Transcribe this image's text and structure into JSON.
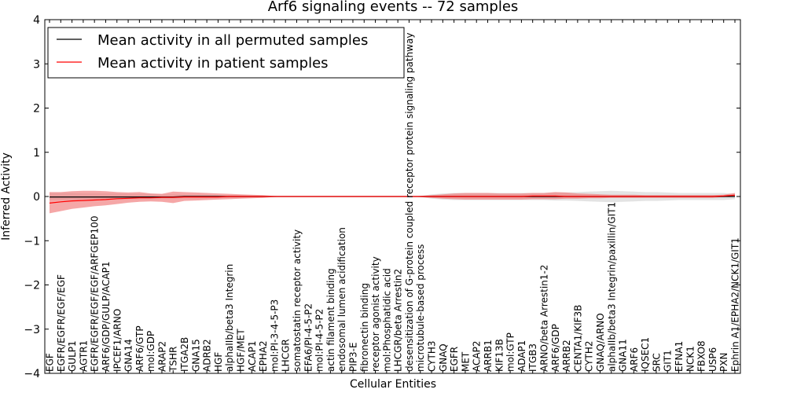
{
  "chart_data": {
    "type": "line",
    "title": "Arf6 signaling events -- 72 samples",
    "xlabel": "Cellular Entities",
    "ylabel": "Inferred Activity",
    "ylim": [
      -4,
      4
    ],
    "yticks": [
      "4",
      "3",
      "2",
      "1",
      "0",
      "−1",
      "−2",
      "−3",
      "−4"
    ],
    "ytick_values": [
      4,
      3,
      2,
      1,
      0,
      -1,
      -2,
      -3,
      -4
    ],
    "legend_position": "top-left",
    "categories": [
      "EGF",
      "EGFR/EGFR/EGF/EGF",
      "GULP1",
      "AGTR1",
      "EGFR/EGFR/EGF/EGF/ARFGEP100",
      "ARF6/GDP/GULP/ACAP1",
      "IPCEF1/ARNO",
      "GNA14",
      "ARF6/GTP",
      "mol:GDP",
      "ARAP2",
      "TSHR",
      "ITGA2B",
      "GNA15",
      "ADRB2",
      "HGF",
      "alphaIIb/beta3 Integrin",
      "HGF/MET",
      "ACAP1",
      "EPHA2",
      "mol:PI-3-4-5-P3",
      "LHCGR",
      "somatostatin receptor activity",
      "EFA6/PI-4-5-P2",
      "mol:PI-4-5-P2",
      "actin filament binding",
      "endosomal lumen acidification",
      "PIP3-E",
      "fibronectin binding",
      "receptor agonist activity",
      "mol:Phosphatidic acid",
      "LHCGR/beta Arrestin2",
      "desensitization of G-protein coupled receptor protein signaling pathway",
      "microtubule-based process",
      "CYTH3",
      "GNAQ",
      "EGFR",
      "MET",
      "ACAP2",
      "ARRB1",
      "KIF13B",
      "mol:GTP",
      "ADAP1",
      "ITGB3",
      "ARNO/beta Arrestin1-2",
      "ARF6/GDP",
      "ARRB2",
      "CENTA1/KIF3B",
      "CYTH2",
      "GNAQ/ARNO",
      "alphaIIb/beta3 Integrin/paxillin/GIT1",
      "GNA11",
      "ARF6",
      "IQSEC1",
      "SRC",
      "GIT1",
      "EFNA1",
      "NCK1",
      "FBXO8",
      "USP6",
      "PXN",
      "Ephrin A1/EPHA2/NCK1/GIT1"
    ],
    "series": [
      {
        "name": "Mean activity in all permuted samples",
        "color": "#000000",
        "band_color": "#cccccc",
        "values": [
          -0.01,
          -0.01,
          -0.01,
          -0.01,
          -0.01,
          -0.01,
          -0.01,
          -0.01,
          -0.01,
          -0.01,
          -0.01,
          -0.01,
          0.0,
          0.0,
          0.0,
          0.0,
          0.0,
          0.0,
          0.0,
          0.0,
          0.0,
          0.0,
          0.0,
          0.0,
          0.0,
          0.0,
          0.0,
          0.0,
          0.0,
          0.0,
          0.0,
          0.0,
          0.0,
          0.0,
          0.0,
          0.0,
          0.0,
          0.0,
          0.0,
          0.0,
          0.0,
          0.0,
          0.0,
          0.0,
          0.0,
          0.0,
          0.0,
          0.0,
          0.0,
          0.0,
          0.0,
          0.0,
          0.0,
          0.0,
          0.0,
          0.0,
          0.0,
          0.0,
          0.0,
          0.0,
          0.0,
          0.0
        ],
        "lower": [
          -0.08,
          -0.08,
          -0.08,
          -0.07,
          -0.07,
          -0.07,
          -0.07,
          -0.06,
          -0.06,
          -0.06,
          -0.05,
          -0.05,
          -0.04,
          -0.04,
          -0.04,
          -0.03,
          -0.03,
          -0.03,
          -0.02,
          -0.02,
          0.0,
          0.0,
          0.0,
          0.0,
          0.0,
          0.0,
          0.0,
          0.0,
          0.0,
          0.0,
          0.0,
          0.0,
          0.0,
          -0.01,
          -0.05,
          -0.07,
          -0.08,
          -0.08,
          -0.08,
          -0.08,
          -0.08,
          -0.08,
          -0.08,
          -0.08,
          -0.08,
          -0.09,
          -0.09,
          -0.1,
          -0.11,
          -0.12,
          -0.13,
          -0.12,
          -0.11,
          -0.1,
          -0.1,
          -0.09,
          -0.08,
          -0.08,
          -0.08,
          -0.08,
          -0.08,
          -0.06
        ],
        "upper": [
          0.08,
          0.08,
          0.08,
          0.07,
          0.07,
          0.07,
          0.07,
          0.06,
          0.06,
          0.06,
          0.05,
          0.05,
          0.04,
          0.04,
          0.04,
          0.03,
          0.03,
          0.03,
          0.02,
          0.02,
          0.0,
          0.0,
          0.0,
          0.0,
          0.0,
          0.0,
          0.0,
          0.0,
          0.0,
          0.0,
          0.0,
          0.0,
          0.0,
          0.01,
          0.05,
          0.07,
          0.08,
          0.08,
          0.08,
          0.08,
          0.08,
          0.08,
          0.08,
          0.08,
          0.08,
          0.09,
          0.09,
          0.1,
          0.11,
          0.12,
          0.13,
          0.12,
          0.11,
          0.1,
          0.1,
          0.09,
          0.08,
          0.08,
          0.08,
          0.08,
          0.08,
          0.06
        ]
      },
      {
        "name": "Mean activity in patient samples",
        "color": "#ff0000",
        "band_color": "#f07878",
        "values": [
          -0.15,
          -0.12,
          -0.1,
          -0.09,
          -0.08,
          -0.07,
          -0.05,
          -0.04,
          -0.03,
          -0.03,
          -0.02,
          -0.02,
          -0.01,
          -0.01,
          -0.01,
          -0.01,
          0.0,
          0.0,
          0.0,
          0.0,
          0.0,
          0.0,
          0.0,
          0.0,
          0.0,
          0.0,
          0.0,
          0.0,
          0.0,
          0.0,
          0.0,
          0.0,
          0.0,
          0.0,
          0.0,
          0.0,
          0.0,
          0.0,
          0.0,
          0.0,
          0.0,
          0.0,
          0.0,
          0.01,
          0.01,
          0.01,
          0.0,
          0.0,
          0.0,
          0.0,
          0.0,
          0.0,
          0.0,
          0.0,
          0.0,
          0.0,
          0.0,
          0.0,
          0.0,
          0.0,
          0.01,
          0.03
        ],
        "lower": [
          -0.38,
          -0.33,
          -0.28,
          -0.25,
          -0.22,
          -0.2,
          -0.17,
          -0.14,
          -0.12,
          -0.11,
          -0.12,
          -0.15,
          -0.1,
          -0.09,
          -0.08,
          -0.07,
          -0.06,
          -0.05,
          -0.04,
          -0.03,
          -0.01,
          0.0,
          0.0,
          0.0,
          0.0,
          0.0,
          0.0,
          0.0,
          0.0,
          0.0,
          0.0,
          0.0,
          0.0,
          -0.01,
          -0.03,
          -0.05,
          -0.06,
          -0.07,
          -0.07,
          -0.07,
          -0.07,
          -0.07,
          -0.07,
          -0.06,
          -0.06,
          -0.06,
          -0.05,
          -0.05,
          -0.04,
          -0.04,
          -0.03,
          -0.03,
          -0.03,
          -0.03,
          -0.03,
          -0.03,
          -0.03,
          -0.03,
          -0.03,
          -0.03,
          -0.01,
          0.0
        ],
        "upper": [
          0.1,
          0.1,
          0.12,
          0.13,
          0.13,
          0.12,
          0.1,
          0.09,
          0.1,
          0.07,
          0.06,
          0.11,
          0.1,
          0.09,
          0.08,
          0.07,
          0.06,
          0.05,
          0.04,
          0.03,
          0.01,
          0.0,
          0.0,
          0.0,
          0.0,
          0.0,
          0.0,
          0.0,
          0.0,
          0.0,
          0.0,
          0.0,
          0.0,
          0.01,
          0.03,
          0.05,
          0.07,
          0.08,
          0.08,
          0.08,
          0.07,
          0.07,
          0.07,
          0.08,
          0.08,
          0.1,
          0.09,
          0.07,
          0.06,
          0.05,
          0.04,
          0.04,
          0.04,
          0.03,
          0.03,
          0.03,
          0.03,
          0.03,
          0.03,
          0.03,
          0.04,
          0.08
        ]
      }
    ]
  }
}
